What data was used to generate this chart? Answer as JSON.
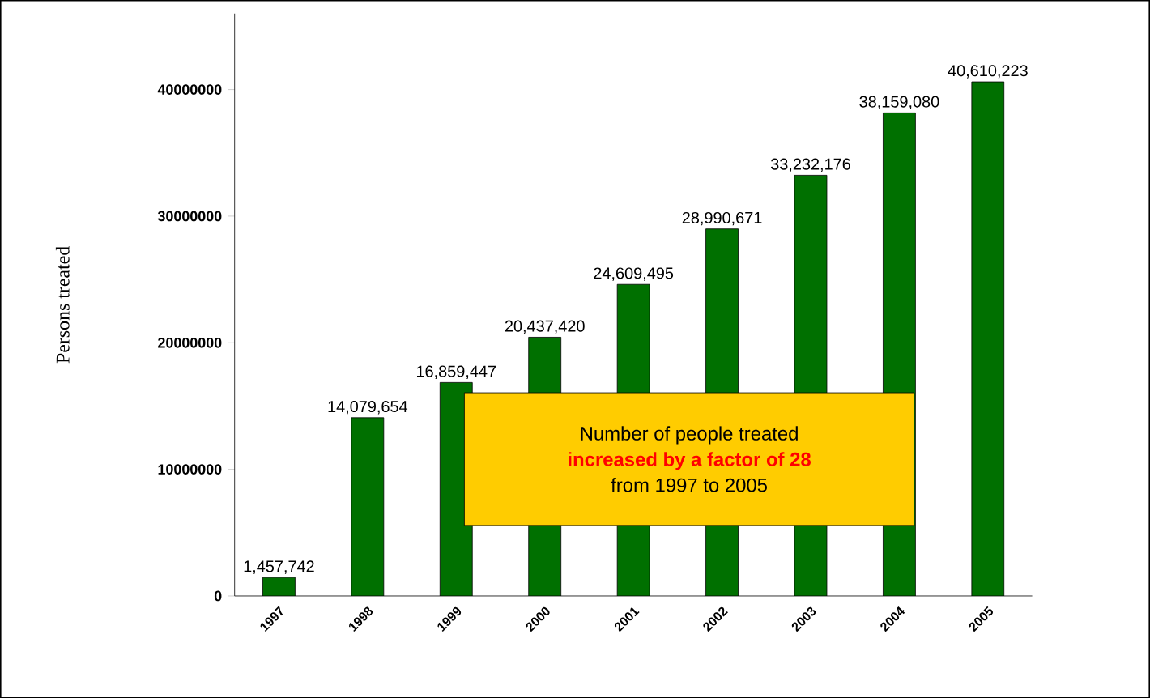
{
  "chart_data": {
    "type": "bar",
    "ylabel": "Persons treated",
    "categories": [
      "1997",
      "1998",
      "1999",
      "2000",
      "2001",
      "2002",
      "2003",
      "2004",
      "2005"
    ],
    "values": [
      1457742,
      14079654,
      16859447,
      20437420,
      24609495,
      28990671,
      33232176,
      38159080,
      40610223
    ],
    "value_labels": [
      "1,457,742",
      "14,079,654",
      "16,859,447",
      "20,437,420",
      "24,609,495",
      "28,990,671",
      "33,232,176",
      "38,159,080",
      "40,610,223"
    ],
    "color": "#007000",
    "ylim": [
      0,
      46000000
    ],
    "yticks": [
      0,
      10000000,
      20000000,
      30000000,
      40000000
    ],
    "annotations": [
      "Number of people treated",
      "increased by a factor of 28",
      "from 1997 to 2005"
    ]
  }
}
